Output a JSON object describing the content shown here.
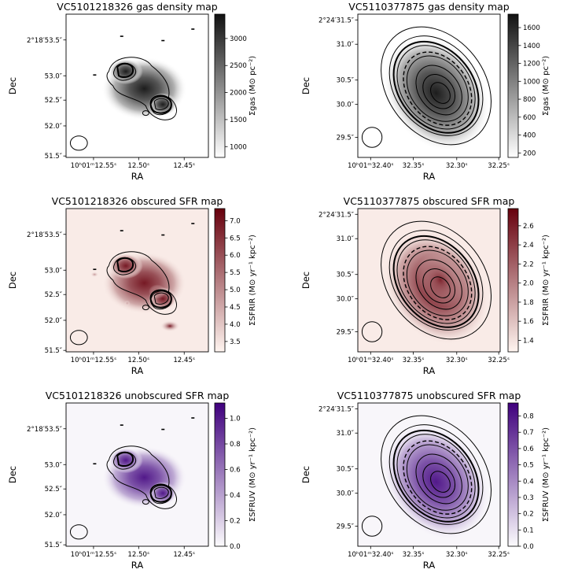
{
  "chart_data": [
    {
      "type": "heatmap",
      "title": "VC5101218326 gas density map",
      "cmap": "gray",
      "xlabel": "RA",
      "ylabel": "Dec",
      "xticks": [
        "10ʰ01ᵐ12.55ˢ",
        "12.50ˢ",
        "12.45ˢ"
      ],
      "yticks": [
        "2°18′53.5″",
        "53.0″",
        "52.5″",
        "52.0″",
        "51.5″"
      ],
      "colorbar_label": "Σgas (M⊙ pc⁻²)",
      "colorbar_ticks": [
        1000,
        1500,
        2000,
        2500,
        3000
      ],
      "colorbar_range": [
        800,
        3450
      ]
    },
    {
      "type": "heatmap",
      "title": "VC5110377875 gas density map",
      "cmap": "gray",
      "xlabel": "RA",
      "ylabel": "Dec",
      "xticks": [
        "10ʰ01ᵐ32.40ˢ",
        "32.35ˢ",
        "32.30ˢ",
        "32.25ˢ"
      ],
      "yticks": [
        "2°24′31.5″",
        "31.0″",
        "30.5″",
        "30.0″",
        "29.5″"
      ],
      "colorbar_label": "Σgas (M⊙ pc⁻²)",
      "colorbar_ticks": [
        200,
        400,
        600,
        800,
        1000,
        1200,
        1400,
        1600
      ],
      "colorbar_range": [
        150,
        1750
      ]
    },
    {
      "type": "heatmap",
      "title": "VC5101218326 obscured SFR map",
      "cmap": "reds",
      "xlabel": "RA",
      "ylabel": "Dec",
      "xticks": [
        "10ʰ01ᵐ12.55ˢ",
        "12.50ˢ",
        "12.45ˢ"
      ],
      "yticks": [
        "2°18′53.5″",
        "53.0″",
        "52.5″",
        "52.0″",
        "51.5″"
      ],
      "colorbar_label": "ΣSFRIR (M⊙ yr⁻¹ kpc⁻²)",
      "colorbar_ticks": [
        3.5,
        4.0,
        4.5,
        5.0,
        5.5,
        6.0,
        6.5,
        7.0
      ],
      "colorbar_range": [
        3.2,
        7.35
      ]
    },
    {
      "type": "heatmap",
      "title": "VC5110377875 obscured SFR map",
      "cmap": "reds",
      "xlabel": "RA",
      "ylabel": "Dec",
      "xticks": [
        "10ʰ01ᵐ32.40ˢ",
        "32.35ˢ",
        "32.30ˢ",
        "32.25ˢ"
      ],
      "yticks": [
        "2°24′31.5″",
        "31.0″",
        "30.5″",
        "30.0″",
        "29.5″"
      ],
      "colorbar_label": "ΣSFRIR (M⊙ yr⁻¹ kpc⁻²)",
      "colorbar_ticks": [
        1.4,
        1.6,
        1.8,
        2.0,
        2.2,
        2.4,
        2.6
      ],
      "colorbar_range": [
        1.28,
        2.78
      ]
    },
    {
      "type": "heatmap",
      "title": "VC5101218326 unobscured SFR map",
      "cmap": "purples",
      "xlabel": "RA",
      "ylabel": "Dec",
      "xticks": [
        "10ʰ01ᵐ12.55ˢ",
        "12.50ˢ",
        "12.45ˢ"
      ],
      "yticks": [
        "2°18′53.5″",
        "53.0″",
        "52.5″",
        "52.0″",
        "51.5″"
      ],
      "colorbar_label": "ΣSFRUV (M⊙ yr⁻¹ kpc⁻²)",
      "colorbar_ticks": [
        0.0,
        0.2,
        0.4,
        0.6,
        0.8,
        1.0
      ],
      "colorbar_range": [
        0.0,
        1.12
      ]
    },
    {
      "type": "heatmap",
      "title": "VC5110377875 unobscured SFR map",
      "cmap": "purples",
      "xlabel": "RA",
      "ylabel": "Dec",
      "xticks": [
        "10ʰ01ᵐ32.40ˢ",
        "32.35ˢ",
        "32.30ˢ",
        "32.25ˢ"
      ],
      "yticks": [
        "2°24′31.5″",
        "31.0″",
        "30.5″",
        "30.0″",
        "29.5″"
      ],
      "colorbar_label": "ΣSFRUV (M⊙ yr⁻¹ kpc⁻²)",
      "colorbar_ticks": [
        0.0,
        0.1,
        0.2,
        0.3,
        0.4,
        0.5,
        0.6,
        0.7,
        0.8
      ],
      "colorbar_range": [
        0.0,
        0.88
      ]
    }
  ],
  "colors": {
    "gray_lo": "#ffffff",
    "gray_hi": "#111111",
    "reds_lo": "#fff5f0",
    "reds_hi": "#67000d",
    "purples_lo": "#fcfbfd",
    "purples_hi": "#3f007d",
    "contour": "#000000"
  }
}
